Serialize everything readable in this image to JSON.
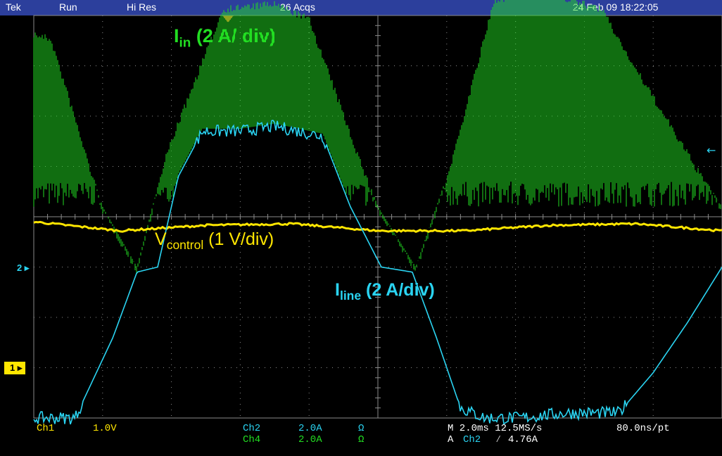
{
  "header": {
    "brand": "Tek",
    "run_state": "Run",
    "acq_mode": "Hi Res",
    "acq_count": "26 Acqs",
    "datetime": "24 Feb 09 18:22:05"
  },
  "annotations": {
    "iin": {
      "main": "I",
      "sub": "in",
      "rest": " (2 A/ div)",
      "color": "#22dd22"
    },
    "vcontrol": {
      "main": "V",
      "sub": "control",
      "rest": " (1 V/div)",
      "color": "#ffe600"
    },
    "iline": {
      "main": "I",
      "sub": "line",
      "rest": " (2 A/div)",
      "color": "#2ad4f2"
    }
  },
  "status": {
    "ch1_label": "Ch1",
    "ch1_scale": "1.0V",
    "ch2_label": "Ch2",
    "ch2_scale": "2.0A",
    "ch2_imp": "Ω",
    "ch4_label": "Ch4",
    "ch4_scale": "2.0A",
    "ch4_imp": "Ω",
    "timebase": "M 2.0ms 12.5MS/s",
    "record": "80.0ns/pt",
    "trigger_prefix": "A",
    "trigger_source": "Ch2",
    "trigger_slope": "⁄",
    "trigger_level": "4.76A"
  },
  "markers": {
    "ch1": "1",
    "ch2": "2"
  },
  "colors": {
    "ch1": "#ffe600",
    "ch2": "#2ad4f2",
    "ch4": "#22dd22",
    "grid": "#8a8a8a",
    "background": "#000000",
    "header": "#2c3f9c"
  },
  "chart_data": {
    "type": "line",
    "title": "",
    "grid": true,
    "x_unit": "ms",
    "x_scale_per_div": 2.0,
    "xlim": [
      0,
      20
    ],
    "series": [
      {
        "name": "Ch2",
        "scale": "2.0A",
        "color": "#2ad4f2",
        "x": [
          0,
          1.2,
          2.3,
          3.0,
          3.6,
          4.2,
          4.9,
          6.0,
          7.0,
          8.4,
          9.2,
          10.1,
          11.0,
          11.7,
          12.4,
          13.1,
          14.1,
          15.5,
          17.0,
          18.0,
          19.0,
          20.0
        ],
        "y": [
          0.0,
          0.0,
          1.6,
          2.9,
          3.0,
          4.8,
          5.7,
          5.7,
          5.8,
          5.6,
          4.2,
          3.0,
          2.9,
          1.6,
          0.2,
          0.0,
          0.0,
          0.1,
          0.1,
          0.9,
          1.9,
          3.0
        ]
      },
      {
        "name": "Ch4",
        "scale": "2.0A",
        "color": "#22dd22",
        "x": [
          0,
          0.5,
          2.0,
          3.0,
          3.9,
          5.5,
          7.0,
          8.0,
          10.0,
          11.1,
          12.0,
          13.4,
          15.0,
          16.5,
          17.5,
          20.0
        ],
        "y": [
          7.7,
          7.6,
          4.2,
          3.0,
          5.4,
          8.2,
          8.3,
          8.0,
          4.2,
          3.0,
          4.8,
          8.4,
          8.5,
          8.2,
          7.0,
          4.2
        ]
      },
      {
        "name": "Ch1",
        "scale": "1.0V",
        "color": "#ffe600",
        "x": [
          0,
          2.5,
          5.0,
          7.5,
          10.0,
          12.5,
          15.0,
          17.5,
          20.0
        ],
        "y": [
          3.9,
          3.72,
          3.83,
          3.86,
          3.72,
          3.72,
          3.83,
          3.86,
          3.72
        ]
      }
    ]
  }
}
